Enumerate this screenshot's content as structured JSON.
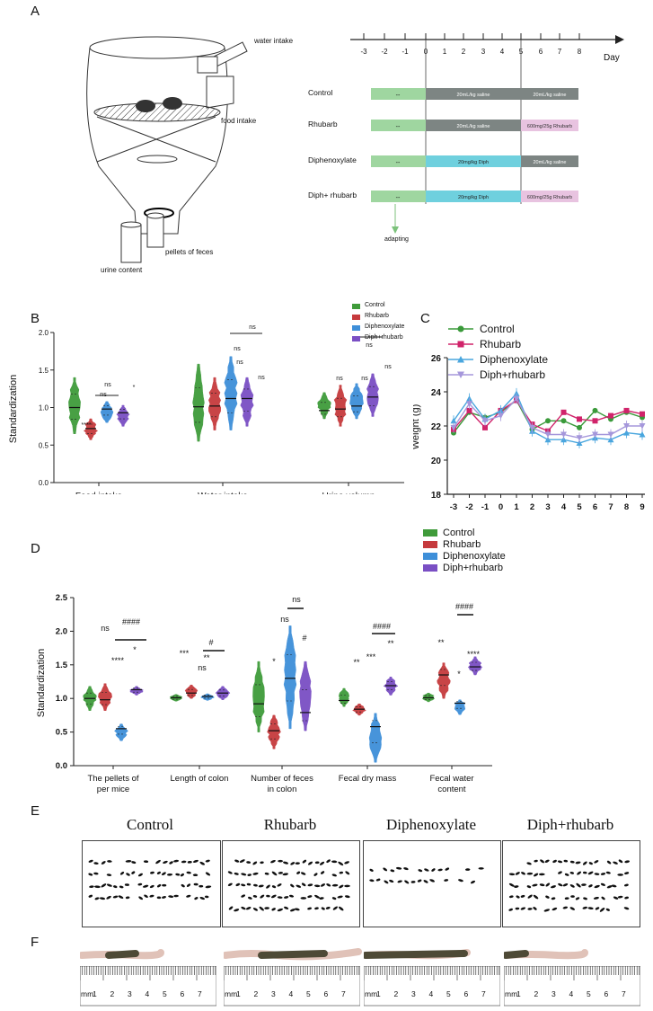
{
  "panels": {
    "A": "A",
    "B": "B",
    "C": "C",
    "D": "D",
    "E": "E",
    "F": "F"
  },
  "colors": {
    "control": "#3f9b3a",
    "rhubarb": "#c63a3d",
    "diphenoxylate": "#3e8fd9",
    "diph_rhubarb": "#7a4fc4",
    "c_control": "#3a9a3a",
    "c_rhubarb": "#d0236a",
    "c_diph": "#49a6de",
    "c_diphrh": "#a597db",
    "bar_green": "#9fd6a0",
    "bar_gray": "#7d8583",
    "bar_cyan": "#6fd0de",
    "bar_pink": "#e8c3e0"
  },
  "schematic": {
    "water_intake": "water intake",
    "food_intake": "food intake",
    "pellets_of_feces": "pellets of feces",
    "urine_content": "urine content"
  },
  "timeline": {
    "days": [
      "-3",
      "-2",
      "-1",
      "0",
      "1",
      "2",
      "3",
      "4",
      "5",
      "6",
      "7",
      "8"
    ],
    "axis_label": "Day",
    "adapting": "adapting",
    "rows": [
      {
        "name": "Control",
        "pre": "--",
        "mid": "20mL/kg saline",
        "post": "20mL/kg saline"
      },
      {
        "name": "Rhubarb",
        "pre": "--",
        "mid": "20mL/kg saline",
        "post": "600mg/25g Rhubarb"
      },
      {
        "name": "Diphenoxylate",
        "pre": "--",
        "mid": "20mg/kg Diph",
        "post": "20mL/kg saline"
      },
      {
        "name": "Diph+ rhubarb",
        "pre": "--",
        "mid": "20mg/kg Diph",
        "post": "600mg/25g Rhubarb"
      }
    ]
  },
  "chart_data": [
    {
      "panel": "B",
      "type": "violin",
      "ylabel": "Standardization",
      "ylim": [
        0,
        2.0
      ],
      "yticks": [
        "0.0",
        "0.5",
        "1.0",
        "1.5",
        "2.0"
      ],
      "categories": [
        "Food intake",
        "Water intake",
        "Urine volumn"
      ],
      "legend": [
        "Control",
        "Rhubarb",
        "Diphenoxylate",
        "Diph+rhubarb"
      ],
      "series": [
        {
          "name": "Control",
          "medians": [
            1.0,
            1.01,
            0.96
          ]
        },
        {
          "name": "Rhubarb",
          "medians": [
            0.72,
            1.02,
            0.98
          ]
        },
        {
          "name": "Diphenoxylate",
          "medians": [
            0.98,
            1.12,
            1.02
          ]
        },
        {
          "name": "Diph+rhubarb",
          "medians": [
            0.93,
            1.12,
            1.14
          ]
        }
      ],
      "annotations": [
        "****",
        "ns",
        "ns",
        "*",
        "ns",
        "ns",
        "ns",
        "ns",
        "ns",
        "ns",
        "ns",
        "ns"
      ]
    },
    {
      "panel": "C",
      "type": "line",
      "ylabel": "Weight (g)",
      "ylim": [
        18,
        26
      ],
      "yticks": [
        "18",
        "20",
        "22",
        "24",
        "26"
      ],
      "x": [
        "-3",
        "-2",
        "-1",
        "0",
        "1",
        "2",
        "3",
        "4",
        "5",
        "6",
        "7",
        "8",
        "9"
      ],
      "series": [
        {
          "name": "Control",
          "values": [
            21.6,
            22.8,
            22.5,
            22.8,
            23.5,
            21.8,
            22.3,
            22.3,
            21.9,
            22.9,
            22.4,
            22.8,
            22.5
          ]
        },
        {
          "name": "Rhubarb",
          "values": [
            21.8,
            22.9,
            21.9,
            22.9,
            23.5,
            22.1,
            21.7,
            22.8,
            22.4,
            22.3,
            22.6,
            22.9,
            22.7
          ]
        },
        {
          "name": "Diphenoxylate",
          "values": [
            22.3,
            23.6,
            22.4,
            22.9,
            23.9,
            21.7,
            21.2,
            21.2,
            21.0,
            21.3,
            21.2,
            21.6,
            21.5
          ]
        },
        {
          "name": "Diph+rhubarb",
          "values": [
            21.9,
            23.3,
            22.3,
            22.6,
            23.6,
            21.9,
            21.5,
            21.5,
            21.3,
            21.5,
            21.5,
            22.0,
            22.0
          ]
        }
      ]
    },
    {
      "panel": "D",
      "type": "violin",
      "ylabel": "Standardization",
      "ylim": [
        0.0,
        2.5
      ],
      "yticks": [
        "0.0",
        "0.5",
        "1.0",
        "1.5",
        "2.0",
        "2.5"
      ],
      "categories": [
        "The pellets of per mice",
        "Length of colon",
        "Number of feces in colon",
        "Fecal dry mass",
        "Fecal water content"
      ],
      "legend": [
        "Control",
        "Rhubarb",
        "Diphenoxylate",
        "Diph+rhubarb"
      ],
      "series": [
        {
          "name": "Control",
          "medians": [
            1.0,
            1.01,
            0.92,
            0.97,
            1.01
          ]
        },
        {
          "name": "Rhubarb",
          "medians": [
            0.98,
            1.08,
            0.52,
            0.84,
            1.35
          ]
        },
        {
          "name": "Diphenoxylate",
          "medians": [
            0.55,
            1.03,
            1.3,
            0.58,
            0.93
          ]
        },
        {
          "name": "Diph+rhubarb",
          "medians": [
            1.13,
            1.08,
            0.79,
            1.19,
            1.47
          ]
        }
      ],
      "annotations": [
        "ns",
        "****",
        "*",
        "####",
        "***",
        "ns",
        "**",
        "#",
        "*",
        "ns",
        "ns",
        "#",
        "**",
        "***",
        "**",
        "####",
        "**",
        "*",
        "****",
        "####"
      ]
    }
  ],
  "pellets": {
    "titles": [
      "Control",
      "Rhubarb",
      "Diphenoxylate",
      "Diph+rhubarb"
    ]
  },
  "rulers": {
    "unit": "mm",
    "nums": [
      "1",
      "2",
      "3",
      "4",
      "5",
      "6",
      "7"
    ]
  }
}
